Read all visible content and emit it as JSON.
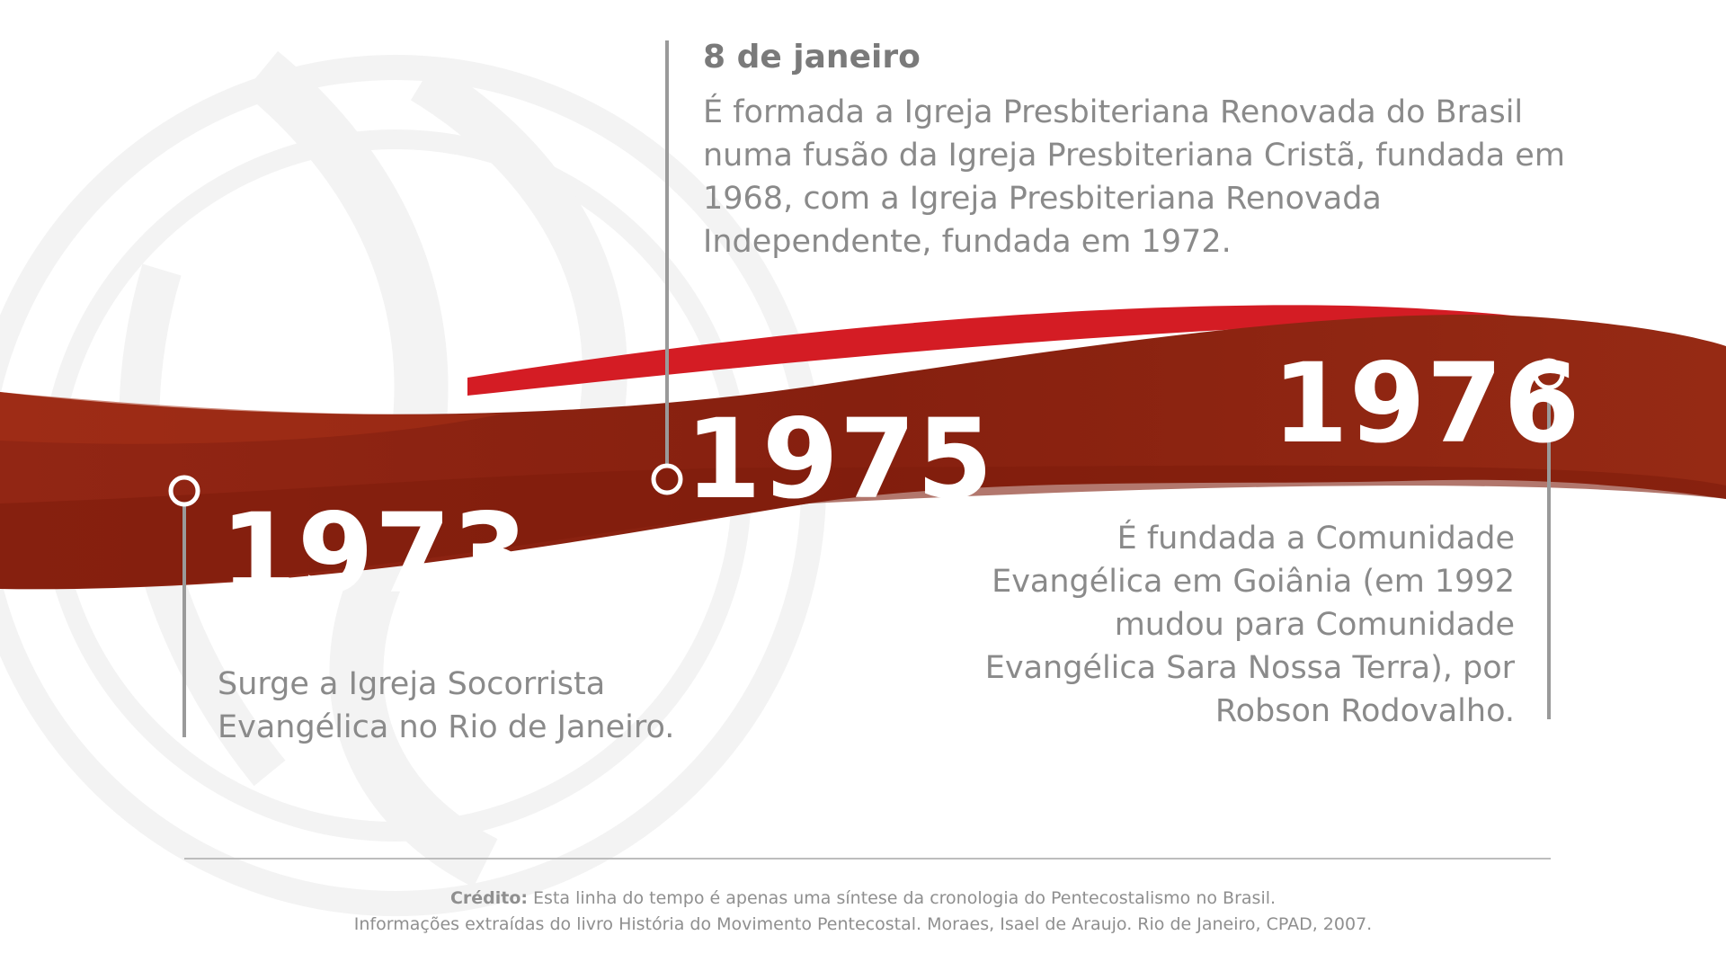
{
  "events": [
    {
      "year": "1973",
      "date": "",
      "description": "Surge a Igreja Socorrista Evangélica no Rio de Janeiro."
    },
    {
      "year": "1975",
      "date": "8 de janeiro",
      "description": "É formada a Igreja Presbiteriana Renovada do Brasil numa fusão da Igreja Presbiteriana Cristã, fundada em 1968, com a Igreja Presbiteriana Renovada Independente, fundada em 1972."
    },
    {
      "year": "1976",
      "date": "",
      "description": "É fundada a Comunidade Evangélica em Goiânia (em 1992 mudou para Comunidade Evangélica Sara Nossa Terra), por Robson Rodovalho."
    }
  ],
  "credit": {
    "label": "Crédito:",
    "line1": " Esta linha do tempo é apenas uma síntese da cronologia do Pentecostalismo no Brasil.",
    "line2": "Informações extraídas do livro História do Movimento Pentecostal. Moraes, Isael de Araujo. Rio de Janeiro, CPAD, 2007."
  },
  "colors": {
    "ribbon_dark": "#8a2210",
    "ribbon_mid": "#9b2a15",
    "ribbon_accent": "#d41c24",
    "marker": "#9a9a9a",
    "text_gray": "#8a8a8a",
    "watermark": "#f2f2f2"
  }
}
